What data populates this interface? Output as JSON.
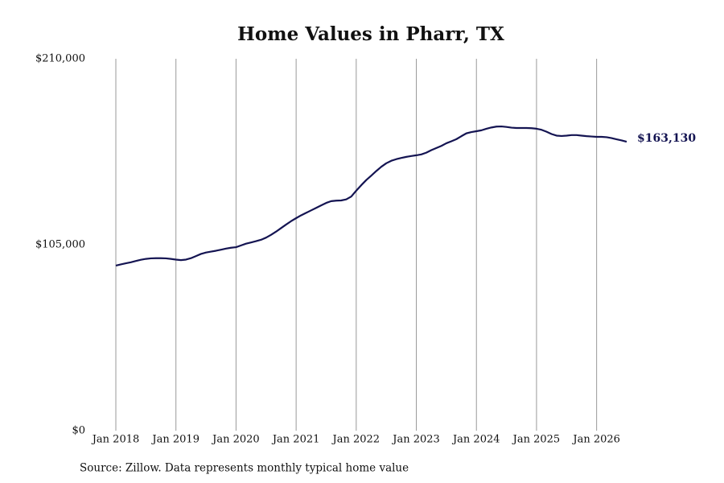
{
  "chart_data": {
    "type": "line",
    "title": "Home Values in Pharr, TX",
    "source": "Source: Zillow. Data represents monthly typical home value",
    "x": [
      "2018-01",
      "2018-02",
      "2018-03",
      "2018-04",
      "2018-05",
      "2018-06",
      "2018-07",
      "2018-08",
      "2018-09",
      "2018-10",
      "2018-11",
      "2018-12",
      "2019-01",
      "2019-02",
      "2019-03",
      "2019-04",
      "2019-05",
      "2019-06",
      "2019-07",
      "2019-08",
      "2019-09",
      "2019-10",
      "2019-11",
      "2019-12",
      "2020-01",
      "2020-02",
      "2020-03",
      "2020-04",
      "2020-05",
      "2020-06",
      "2020-07",
      "2020-08",
      "2020-09",
      "2020-10",
      "2020-11",
      "2020-12",
      "2021-01",
      "2021-02",
      "2021-03",
      "2021-04",
      "2021-05",
      "2021-06",
      "2021-07",
      "2021-08",
      "2021-09",
      "2021-10",
      "2021-11",
      "2021-12",
      "2022-01",
      "2022-02",
      "2022-03",
      "2022-04",
      "2022-05",
      "2022-06",
      "2022-07",
      "2022-08",
      "2022-09",
      "2022-10",
      "2022-11",
      "2022-12",
      "2023-01",
      "2023-02",
      "2023-03",
      "2023-04",
      "2023-05",
      "2023-06",
      "2023-07",
      "2023-08",
      "2023-09",
      "2023-10",
      "2023-11",
      "2023-12",
      "2024-01",
      "2024-02",
      "2024-03",
      "2024-04",
      "2024-05",
      "2024-06",
      "2024-07",
      "2024-08",
      "2024-09",
      "2024-10",
      "2024-11",
      "2024-12",
      "2025-01",
      "2025-02",
      "2025-03",
      "2025-04",
      "2025-05",
      "2025-06",
      "2025-07",
      "2025-08",
      "2025-09",
      "2025-10",
      "2025-11",
      "2025-12",
      "2026-01",
      "2026-02",
      "2026-03",
      "2026-04",
      "2026-05",
      "2026-06",
      "2026-07"
    ],
    "series": [
      {
        "color": "#141452",
        "values": [
          93200,
          93900,
          94500,
          95100,
          95800,
          96500,
          97000,
          97300,
          97400,
          97400,
          97300,
          97000,
          96600,
          96300,
          96600,
          97400,
          98600,
          99800,
          100600,
          101100,
          101600,
          102200,
          102800,
          103300,
          103600,
          104600,
          105600,
          106300,
          107000,
          107800,
          109000,
          110600,
          112400,
          114400,
          116400,
          118300,
          120000,
          121600,
          123000,
          124400,
          125800,
          127200,
          128600,
          129600,
          129900,
          130000,
          130600,
          132200,
          135500,
          138600,
          141500,
          144000,
          146600,
          149000,
          151000,
          152400,
          153300,
          154000,
          154600,
          155100,
          155500,
          156000,
          157000,
          158400,
          159600,
          160800,
          162300,
          163400,
          164600,
          166300,
          167900,
          168600,
          169100,
          169600,
          170500,
          171200,
          171700,
          171800,
          171500,
          171100,
          170900,
          170900,
          170900,
          170800,
          170500,
          169900,
          168800,
          167500,
          166600,
          166400,
          166600,
          166900,
          166900,
          166600,
          166300,
          166100,
          165900,
          165900,
          165700,
          165200,
          164500,
          163900,
          163130
        ],
        "value_labels": [
          null,
          null,
          null,
          null,
          null,
          null,
          null,
          null,
          null,
          null,
          null,
          null,
          null,
          null,
          null,
          null,
          null,
          null,
          null,
          null,
          null,
          null,
          null,
          null,
          null,
          null,
          null,
          null,
          null,
          null,
          null,
          null,
          null,
          null,
          null,
          null,
          null,
          null,
          null,
          null,
          null,
          null,
          null,
          null,
          null,
          null,
          null,
          null,
          null,
          null,
          null,
          null,
          null,
          null,
          null,
          null,
          null,
          null,
          null,
          null,
          null,
          null,
          null,
          null,
          null,
          null,
          null,
          null,
          null,
          null,
          null,
          null,
          null,
          null,
          null,
          null,
          null,
          null,
          null,
          null,
          null,
          null,
          null,
          null,
          null,
          null,
          null,
          null,
          null,
          null,
          null,
          null,
          null,
          null,
          null,
          null,
          null,
          null,
          null,
          null,
          null,
          null,
          "$163,130"
        ]
      }
    ],
    "xlim": [
      "2018-01",
      "2026-07"
    ],
    "xticks": [
      {
        "value": "2018-01",
        "label": "Jan 2018"
      },
      {
        "value": "2019-01",
        "label": "Jan 2019"
      },
      {
        "value": "2020-01",
        "label": "Jan 2020"
      },
      {
        "value": "2021-01",
        "label": "Jan 2021"
      },
      {
        "value": "2022-01",
        "label": "Jan 2022"
      },
      {
        "value": "2023-01",
        "label": "Jan 2023"
      },
      {
        "value": "2024-01",
        "label": "Jan 2024"
      },
      {
        "value": "2025-01",
        "label": "Jan 2025"
      },
      {
        "value": "2026-01",
        "label": "Jan 2026"
      }
    ],
    "ylim": [
      0,
      210000
    ],
    "yticks": [
      {
        "value": 0,
        "label": "$0"
      },
      {
        "value": 105000,
        "label": "$105,000"
      },
      {
        "value": 210000,
        "label": "$210,000"
      }
    ],
    "grid": "x"
  }
}
